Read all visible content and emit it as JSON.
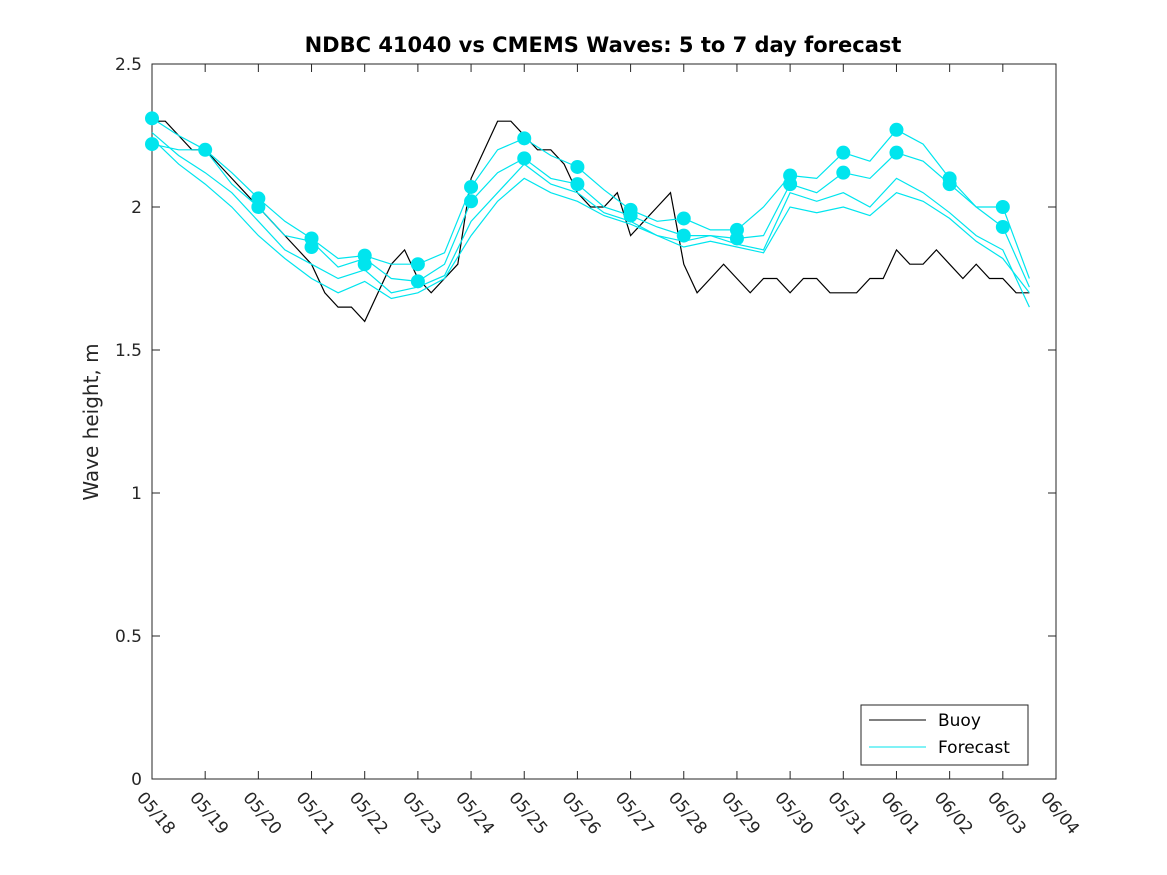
{
  "chart_data": {
    "type": "line",
    "title": "NDBC 41040 vs CMEMS Waves: 5 to 7 day forecast",
    "xlabel": "",
    "ylabel": "Wave height, m",
    "xlim": [
      "05/18",
      "06/04"
    ],
    "ylim": [
      0,
      2.5
    ],
    "x_ticks": [
      "05/18",
      "05/19",
      "05/20",
      "05/21",
      "05/22",
      "05/23",
      "05/24",
      "05/25",
      "05/26",
      "05/27",
      "05/28",
      "05/29",
      "05/30",
      "05/31",
      "06/01",
      "06/02",
      "06/03",
      "06/04"
    ],
    "y_ticks": [
      "0",
      "0.5",
      "1",
      "1.5",
      "2",
      "2.5"
    ],
    "grid": false,
    "legend": {
      "placement": "bottom-right",
      "entries": [
        "Buoy",
        "Forecast"
      ]
    },
    "colors": {
      "buoy": "#000000",
      "forecast": "#00e5ee"
    },
    "x_unit": "day",
    "series": [
      {
        "name": "Buoy",
        "x": [
          0,
          0.25,
          0.5,
          0.75,
          1,
          1.25,
          1.5,
          1.75,
          2,
          2.25,
          2.5,
          2.75,
          3,
          3.25,
          3.5,
          3.75,
          4,
          4.25,
          4.5,
          4.75,
          5,
          5.25,
          5.5,
          5.75,
          6,
          6.25,
          6.5,
          6.75,
          7,
          7.25,
          7.5,
          7.75,
          8,
          8.25,
          8.5,
          8.75,
          9,
          9.25,
          9.5,
          9.75,
          10,
          10.25,
          10.5,
          10.75,
          11,
          11.25,
          11.5,
          11.75,
          12,
          12.25,
          12.5,
          12.75,
          13,
          13.25,
          13.5,
          13.75,
          14,
          14.25,
          14.5,
          14.75,
          15,
          15.25,
          15.5,
          15.75,
          16,
          16.25,
          16.5
        ],
        "values": [
          2.3,
          2.3,
          2.25,
          2.2,
          2.2,
          2.15,
          2.1,
          2.05,
          2.0,
          1.95,
          1.9,
          1.85,
          1.8,
          1.7,
          1.65,
          1.65,
          1.6,
          1.7,
          1.8,
          1.85,
          1.75,
          1.7,
          1.75,
          1.8,
          2.1,
          2.2,
          2.3,
          2.3,
          2.25,
          2.2,
          2.2,
          2.15,
          2.05,
          2.0,
          2.0,
          2.05,
          1.9,
          1.95,
          2.0,
          2.05,
          1.8,
          1.7,
          1.75,
          1.8,
          1.75,
          1.7,
          1.75,
          1.75,
          1.7,
          1.75,
          1.75,
          1.7,
          1.7,
          1.7,
          1.75,
          1.75,
          1.85,
          1.8,
          1.8,
          1.85,
          1.8,
          1.75,
          1.8,
          1.75,
          1.75,
          1.7,
          1.7
        ]
      },
      {
        "name": "",
        "x": [
          0,
          0.5,
          1,
          1.5,
          2,
          2.5,
          3,
          3.5,
          4,
          4.5,
          5,
          5.5,
          6,
          6.5,
          7,
          7.5,
          8,
          8.5,
          9,
          9.5,
          10,
          10.5,
          11,
          11.5,
          12,
          12.5,
          13,
          13.5,
          14,
          14.5,
          15,
          15.5,
          16,
          16.5
        ],
        "values": [
          2.31,
          2.25,
          2.2,
          2.12,
          2.03,
          1.95,
          1.89,
          1.82,
          1.83,
          1.8,
          1.8,
          1.84,
          2.07,
          2.2,
          2.24,
          2.18,
          2.14,
          2.06,
          1.99,
          1.95,
          1.96,
          1.92,
          1.92,
          2.0,
          2.11,
          2.1,
          2.19,
          2.16,
          2.27,
          2.22,
          2.1,
          2.0,
          2.0,
          1.75
        ]
      },
      {
        "name": "",
        "x": [
          0,
          0.5,
          1,
          1.5,
          2,
          2.5,
          3,
          3.5,
          4,
          4.5,
          5,
          5.5,
          6,
          6.5,
          7,
          7.5,
          8,
          8.5,
          9,
          9.5,
          10,
          10.5,
          11,
          11.5,
          12,
          12.5,
          13,
          13.5,
          14,
          14.5,
          15,
          15.5,
          16,
          16.5
        ],
        "values": [
          2.22,
          2.2,
          2.2,
          2.08,
          2.0,
          1.9,
          1.88,
          1.79,
          1.82,
          1.75,
          1.74,
          1.8,
          2.02,
          2.12,
          2.17,
          2.1,
          2.08,
          2.0,
          1.97,
          1.93,
          1.9,
          1.9,
          1.89,
          1.9,
          2.08,
          2.05,
          2.12,
          2.1,
          2.19,
          2.16,
          2.08,
          2.0,
          1.93,
          1.72
        ]
      },
      {
        "name": "",
        "x": [
          0,
          0.5,
          1,
          1.5,
          2,
          2.5,
          3,
          3.5,
          4,
          4.5,
          5,
          5.5,
          6,
          6.5,
          7,
          7.5,
          8,
          8.5,
          9,
          9.5,
          10,
          10.5,
          11,
          11.5,
          12,
          12.5,
          13,
          13.5,
          14,
          14.5,
          15,
          15.5,
          16,
          16.5
        ],
        "values": [
          2.26,
          2.18,
          2.12,
          2.05,
          1.95,
          1.85,
          1.8,
          1.75,
          1.78,
          1.7,
          1.72,
          1.76,
          1.95,
          2.05,
          2.15,
          2.08,
          2.05,
          1.98,
          1.95,
          1.9,
          1.88,
          1.9,
          1.87,
          1.85,
          2.05,
          2.02,
          2.05,
          2.0,
          2.1,
          2.05,
          1.98,
          1.9,
          1.85,
          1.65
        ]
      },
      {
        "name": "",
        "x": [
          0,
          0.5,
          1,
          1.5,
          2,
          2.5,
          3,
          3.5,
          4,
          4.5,
          5,
          5.5,
          6,
          6.5,
          7,
          7.5,
          8,
          8.5,
          9,
          9.5,
          10,
          10.5,
          11,
          11.5,
          12,
          12.5,
          13,
          13.5,
          14,
          14.5,
          15,
          15.5,
          16,
          16.5
        ],
        "values": [
          2.24,
          2.15,
          2.08,
          2.0,
          1.9,
          1.82,
          1.75,
          1.7,
          1.74,
          1.68,
          1.7,
          1.75,
          1.9,
          2.02,
          2.1,
          2.05,
          2.02,
          1.97,
          1.94,
          1.9,
          1.86,
          1.88,
          1.86,
          1.84,
          2.0,
          1.98,
          2.0,
          1.97,
          2.05,
          2.02,
          1.96,
          1.88,
          1.82,
          1.7
        ]
      }
    ],
    "markers": {
      "x": [
        0,
        0,
        1,
        2,
        2,
        3,
        3,
        4,
        4,
        5,
        5,
        6,
        6,
        7,
        7,
        8,
        8,
        9,
        9,
        10,
        10,
        11,
        11,
        12,
        12,
        13,
        13,
        14,
        14,
        15,
        15,
        16,
        16
      ],
      "values": [
        2.31,
        2.22,
        2.2,
        2.03,
        2.0,
        1.89,
        1.86,
        1.83,
        1.8,
        1.8,
        1.74,
        2.07,
        2.02,
        2.24,
        2.17,
        2.14,
        2.08,
        1.99,
        1.97,
        1.96,
        1.9,
        1.92,
        1.89,
        2.11,
        2.08,
        2.19,
        2.12,
        2.27,
        2.19,
        2.1,
        2.08,
        2.0,
        1.93
      ]
    }
  }
}
